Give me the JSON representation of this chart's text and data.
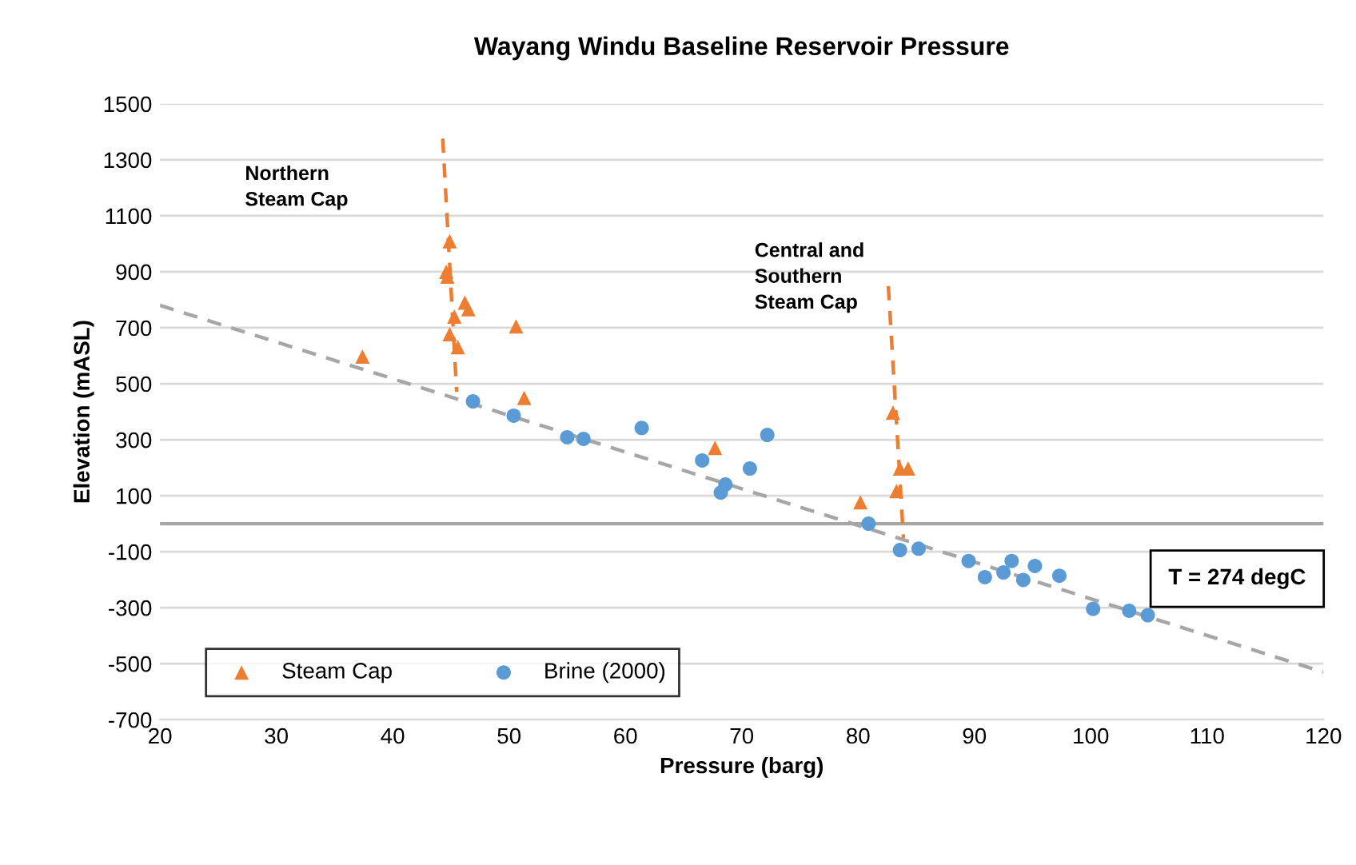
{
  "chart_data": {
    "type": "scatter",
    "title": "Wayang Windu Baseline Reservoir Pressure",
    "xlabel": "Pressure (barg)",
    "ylabel": "Elevation (mASL)",
    "xlim": [
      20,
      120
    ],
    "xticks": [
      20,
      30,
      40,
      50,
      60,
      70,
      80,
      90,
      100,
      110,
      120
    ],
    "ylim": [
      -700,
      1500
    ],
    "yticks": [
      -700,
      -500,
      -300,
      -100,
      100,
      300,
      500,
      700,
      900,
      1100,
      1300,
      1500
    ],
    "grid": "y",
    "legend": "bottom left",
    "ref_lines": [
      {
        "axis": "y",
        "value": 0,
        "label": null,
        "color": "#a6a6a6",
        "line_style": "solid"
      }
    ],
    "annotations": [
      "Northern\nSteam Cap",
      "Central and\nSouthern\nSteam Cap",
      "T = 274 degC"
    ],
    "series": [
      {
        "name": "Steam Cap",
        "marker": "triangle",
        "color": "#ed7d31",
        "x": [
          37.4,
          44.9,
          44.7,
          44.6,
          46.2,
          46.5,
          45.3,
          44.9,
          45.6,
          50.6,
          51.3,
          67.7,
          80.2,
          83.0,
          83.6,
          84.3,
          83.3
        ],
        "values": [
          597,
          1009,
          883,
          900,
          790,
          766,
          740,
          677,
          631,
          705,
          449,
          271,
          77,
          397,
          197,
          197,
          117
        ]
      },
      {
        "name": "Brine (2000)",
        "marker": "circle",
        "color": "#5b9bd5",
        "x": [
          46.9,
          50.4,
          55.0,
          56.4,
          61.4,
          66.6,
          68.2,
          68.6,
          70.7,
          72.2,
          80.9,
          83.6,
          85.2,
          89.5,
          90.9,
          92.5,
          93.2,
          94.2,
          95.2,
          97.3,
          100.2,
          103.3,
          104.9
        ],
        "values": [
          437,
          386,
          309,
          303,
          342,
          226,
          111,
          140,
          197,
          317,
          0,
          -94,
          -89,
          -133,
          -191,
          -174,
          -133,
          -201,
          -151,
          -186,
          -304,
          -311,
          -327
        ]
      },
      {
        "type": "line",
        "marker": "none",
        "line_style": "dashed",
        "color": "#a6a6a6",
        "x": [
          20,
          120
        ],
        "values": [
          780,
          -530
        ]
      },
      {
        "type": "line",
        "marker": "none",
        "line_style": "dashed",
        "color": "#ed7d31",
        "x": [
          44.3,
          45.5
        ],
        "values": [
          1376,
          471
        ]
      },
      {
        "type": "line",
        "marker": "none",
        "line_style": "dashed",
        "color": "#ed7d31",
        "x": [
          82.6,
          83.9
        ],
        "values": [
          849,
          -51
        ]
      }
    ]
  }
}
